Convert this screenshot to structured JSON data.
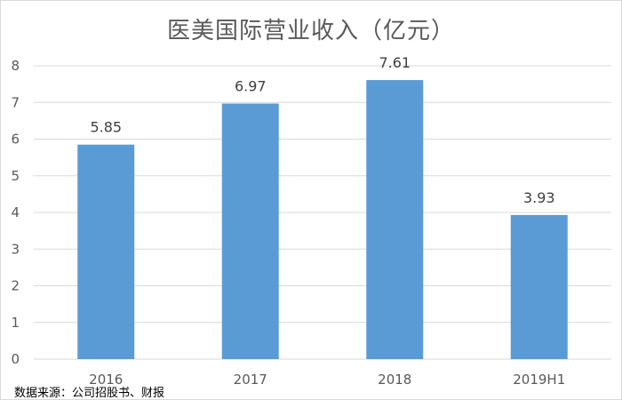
{
  "chart_data": {
    "type": "bar",
    "title": "医美国际营业收入（亿元）",
    "categories": [
      "2016",
      "2017",
      "2018",
      "2019H1"
    ],
    "values": [
      5.85,
      6.97,
      7.61,
      3.93
    ],
    "value_labels": [
      "5.85",
      "6.97",
      "7.61",
      "3.93"
    ],
    "y_ticks": [
      "0",
      "1",
      "2",
      "3",
      "4",
      "5",
      "6",
      "7",
      "8"
    ],
    "ylim": [
      0,
      8
    ],
    "xlabel": "",
    "ylabel": "",
    "grid": true,
    "legend": "none",
    "bar_color": "#5b9bd5",
    "grid_color": "#d9d9d9"
  },
  "source_note": "数据来源：公司招股书、财报"
}
